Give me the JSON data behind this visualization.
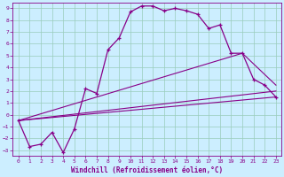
{
  "xlabel": "Windchill (Refroidissement éolien,°C)",
  "bg_color": "#cceeff",
  "line_color": "#880088",
  "grid_color": "#99ccbb",
  "xlim": [
    -0.5,
    23.5
  ],
  "ylim": [
    -3.5,
    9.5
  ],
  "xticks": [
    0,
    1,
    2,
    3,
    4,
    5,
    6,
    7,
    8,
    9,
    10,
    11,
    12,
    13,
    14,
    15,
    16,
    17,
    18,
    19,
    20,
    21,
    22,
    23
  ],
  "yticks": [
    -3,
    -2,
    -1,
    0,
    1,
    2,
    3,
    4,
    5,
    6,
    7,
    8,
    9
  ],
  "main_x": [
    0,
    1,
    2,
    3,
    4,
    5,
    6,
    7,
    8,
    9,
    10,
    11,
    12,
    13,
    14,
    15,
    16,
    17,
    18,
    19,
    20,
    21,
    22,
    23
  ],
  "main_y": [
    -0.5,
    -2.7,
    -2.5,
    -1.5,
    -3.2,
    -1.2,
    2.2,
    1.8,
    5.5,
    6.5,
    8.7,
    9.2,
    9.2,
    8.8,
    9.0,
    8.8,
    8.5,
    7.3,
    7.6,
    5.2,
    5.2,
    3.0,
    2.5,
    1.5
  ],
  "line1_x": [
    0,
    23
  ],
  "line1_y": [
    -0.5,
    1.5
  ],
  "line2_x": [
    0,
    23
  ],
  "line2_y": [
    -0.5,
    2.0
  ],
  "line3_x": [
    0,
    20,
    23
  ],
  "line3_y": [
    -0.5,
    5.2,
    2.5
  ]
}
